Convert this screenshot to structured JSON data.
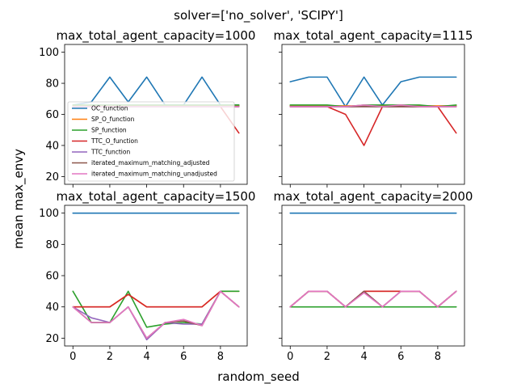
{
  "figure": {
    "suptitle": "solver=['no_solver', 'SCIPY']",
    "xlabel": "random_seed",
    "ylabel": "mean max_envy"
  },
  "chart_data": [
    {
      "type": "line",
      "title": "max_total_agent_capacity=1000",
      "x": [
        0,
        1,
        2,
        3,
        4,
        5,
        6,
        7,
        8,
        9
      ],
      "xlim": [
        -0.45,
        9.45
      ],
      "ylim": [
        15,
        105
      ],
      "xticks": [
        0,
        2,
        4,
        6,
        8
      ],
      "yticks": [
        20,
        40,
        60,
        80,
        100
      ],
      "show_xticklabels": false,
      "show_yticklabels": true,
      "legend": "lower-left",
      "series": [
        {
          "name": "OC_function",
          "color": "#1f77b4",
          "values": [
            66,
            68,
            84,
            68,
            84,
            66,
            66,
            84,
            66,
            66
          ]
        },
        {
          "name": "SP_O_function",
          "color": "#ff7f0e",
          "values": [
            65.5,
            65.5,
            65.5,
            65.5,
            65.5,
            65.5,
            65.5,
            65.5,
            65.5,
            65.5
          ]
        },
        {
          "name": "SP_function",
          "color": "#2ca02c",
          "values": [
            66,
            66,
            66,
            66,
            66,
            66,
            66,
            66,
            66,
            66
          ]
        },
        {
          "name": "TTC_O_function",
          "color": "#d62728",
          "values": [
            65,
            65,
            65,
            65,
            65,
            65,
            65,
            65,
            65,
            48
          ]
        },
        {
          "name": "TTC_function",
          "color": "#9467bd",
          "values": [
            65,
            65,
            65,
            65,
            65,
            65,
            65,
            65,
            65,
            65
          ]
        },
        {
          "name": "iterated_maximum_matching_adjusted",
          "color": "#8c564b",
          "values": [
            65,
            65,
            65,
            65,
            65,
            65,
            65,
            65,
            65,
            65
          ]
        },
        {
          "name": "iterated_maximum_matching_unadjusted",
          "color": "#e377c2",
          "values": [
            65,
            65,
            65,
            65,
            65,
            65,
            65,
            65,
            65,
            65
          ]
        }
      ]
    },
    {
      "type": "line",
      "title": "max_total_agent_capacity=1115",
      "x": [
        0,
        1,
        2,
        3,
        4,
        5,
        6,
        7,
        8,
        9
      ],
      "xlim": [
        -0.45,
        9.45
      ],
      "ylim": [
        15,
        105
      ],
      "xticks": [
        0,
        2,
        4,
        6,
        8
      ],
      "yticks": [
        20,
        40,
        60,
        80,
        100
      ],
      "show_xticklabels": false,
      "show_yticklabels": false,
      "series": [
        {
          "name": "OC_function",
          "color": "#1f77b4",
          "values": [
            81,
            84,
            84,
            65,
            84,
            66,
            81,
            84,
            84,
            84
          ]
        },
        {
          "name": "SP_O_function",
          "color": "#ff7f0e",
          "values": [
            65.5,
            65.5,
            65.5,
            65.5,
            65.5,
            65.5,
            65.5,
            65.5,
            65.5,
            65.5
          ]
        },
        {
          "name": "SP_function",
          "color": "#2ca02c",
          "values": [
            66,
            66,
            66,
            65,
            66,
            66,
            66,
            66,
            65,
            66
          ]
        },
        {
          "name": "TTC_O_function",
          "color": "#d62728",
          "values": [
            65,
            65,
            65,
            60,
            40,
            65,
            65,
            65,
            65,
            48
          ]
        },
        {
          "name": "TTC_function",
          "color": "#9467bd",
          "values": [
            65,
            65,
            65,
            65,
            65,
            65,
            65,
            65,
            65,
            65
          ]
        },
        {
          "name": "iterated_maximum_matching_adjusted",
          "color": "#8c564b",
          "values": [
            65,
            65,
            65,
            65,
            65,
            65,
            65,
            65,
            65,
            65
          ]
        },
        {
          "name": "iterated_maximum_matching_unadjusted",
          "color": "#e377c2",
          "values": [
            65,
            65,
            65,
            65,
            66,
            65,
            66,
            65,
            65,
            65
          ]
        }
      ]
    },
    {
      "type": "line",
      "title": "max_total_agent_capacity=1500",
      "x": [
        0,
        1,
        2,
        3,
        4,
        5,
        6,
        7,
        8,
        9
      ],
      "xlim": [
        -0.45,
        9.45
      ],
      "ylim": [
        15,
        105
      ],
      "xticks": [
        0,
        2,
        4,
        6,
        8
      ],
      "yticks": [
        20,
        40,
        60,
        80,
        100
      ],
      "show_xticklabels": true,
      "show_yticklabels": true,
      "series": [
        {
          "name": "OC_function",
          "color": "#1f77b4",
          "values": [
            100,
            100,
            100,
            100,
            100,
            100,
            100,
            100,
            100,
            100
          ]
        },
        {
          "name": "SP_O_function",
          "color": "#ff7f0e",
          "values": [
            40,
            40,
            40,
            48,
            40,
            40,
            40,
            40,
            50,
            50
          ]
        },
        {
          "name": "SP_function",
          "color": "#2ca02c",
          "values": [
            50,
            30,
            30,
            50,
            27,
            29,
            30,
            29,
            50,
            50
          ]
        },
        {
          "name": "TTC_O_function",
          "color": "#d62728",
          "values": [
            40,
            40,
            40,
            48,
            40,
            40,
            40,
            40,
            50,
            40
          ]
        },
        {
          "name": "TTC_function",
          "color": "#9467bd",
          "values": [
            40,
            33,
            30,
            40,
            19,
            30,
            29,
            29,
            50,
            40
          ]
        },
        {
          "name": "iterated_maximum_matching_adjusted",
          "color": "#8c564b",
          "values": [
            40,
            30,
            30,
            40,
            20,
            30,
            31,
            28,
            50,
            40
          ]
        },
        {
          "name": "iterated_maximum_matching_unadjusted",
          "color": "#e377c2",
          "values": [
            40,
            30,
            30,
            40,
            20,
            30,
            32,
            28,
            50,
            40
          ]
        }
      ]
    },
    {
      "type": "line",
      "title": "max_total_agent_capacity=2000",
      "x": [
        0,
        1,
        2,
        3,
        4,
        5,
        6,
        7,
        8,
        9
      ],
      "xlim": [
        -0.45,
        9.45
      ],
      "ylim": [
        15,
        105
      ],
      "xticks": [
        0,
        2,
        4,
        6,
        8
      ],
      "yticks": [
        20,
        40,
        60,
        80,
        100
      ],
      "show_xticklabels": true,
      "show_yticklabels": false,
      "series": [
        {
          "name": "OC_function",
          "color": "#1f77b4",
          "values": [
            100,
            100,
            100,
            100,
            100,
            100,
            100,
            100,
            100,
            100
          ]
        },
        {
          "name": "SP_O_function",
          "color": "#ff7f0e",
          "values": [
            40,
            50,
            50,
            40,
            50,
            50,
            50,
            50,
            40,
            50
          ]
        },
        {
          "name": "SP_function",
          "color": "#2ca02c",
          "values": [
            40,
            40,
            40,
            40,
            40,
            40,
            40,
            40,
            40,
            40
          ]
        },
        {
          "name": "TTC_O_function",
          "color": "#d62728",
          "values": [
            40,
            50,
            50,
            40,
            50,
            50,
            50,
            50,
            40,
            50
          ]
        },
        {
          "name": "TTC_function",
          "color": "#9467bd",
          "values": [
            40,
            50,
            50,
            40,
            50,
            40,
            50,
            50,
            40,
            50
          ]
        },
        {
          "name": "iterated_maximum_matching_adjusted",
          "color": "#8c564b",
          "values": [
            40,
            50,
            50,
            40,
            50,
            40,
            50,
            50,
            40,
            50
          ]
        },
        {
          "name": "iterated_maximum_matching_unadjusted",
          "color": "#e377c2",
          "values": [
            40,
            50,
            50,
            40,
            49,
            40,
            50,
            50,
            40,
            50
          ]
        }
      ]
    }
  ]
}
